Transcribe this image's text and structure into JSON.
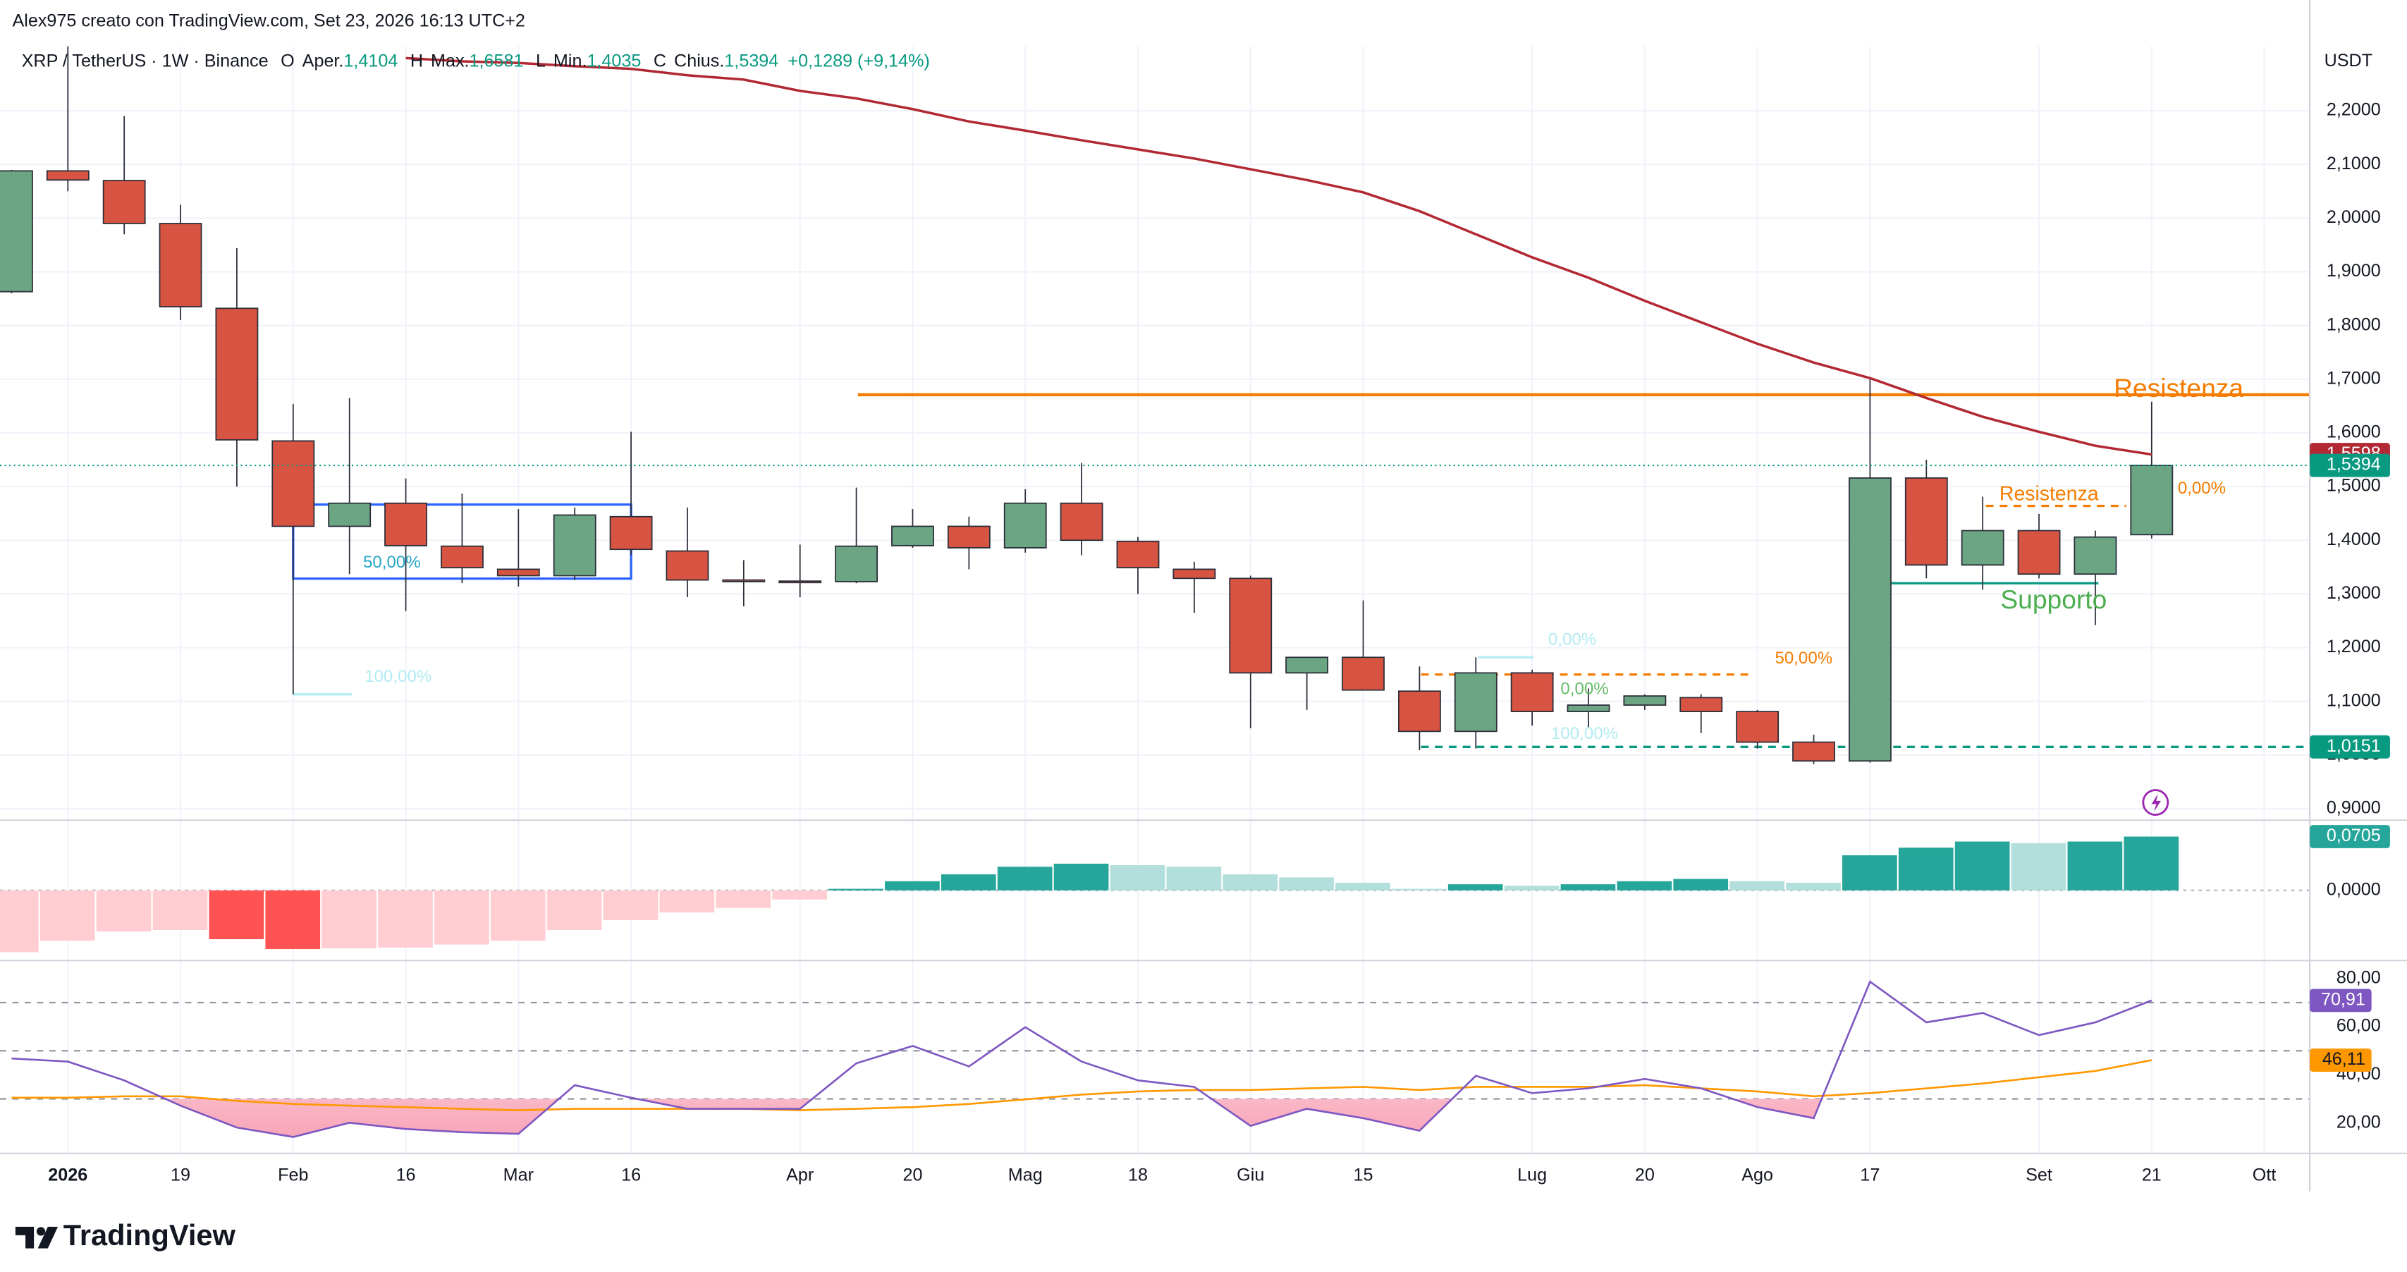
{
  "header": {
    "text": "Alex975 creato con TradingView.com, Set 23, 2026 16:13 UTC+2"
  },
  "footer": {
    "brand": "TradingView"
  },
  "chart_data": [
    {
      "type": "candlestick",
      "legend": {
        "symbol": "XRP / TetherUS · 1W · Binance",
        "fields": [
          {
            "key": "O",
            "name": "Aper.",
            "value": "1,4104"
          },
          {
            "key": "H",
            "name": "Max.",
            "value": "1,6581"
          },
          {
            "key": "L",
            "name": "Min.",
            "value": "1,4035"
          },
          {
            "key": "C",
            "name": "Chius.",
            "value": "1,5394"
          }
        ],
        "change": "+0,1289 (+9,14%)"
      },
      "axis_unit": "USDT",
      "categories": [
        null,
        "2026",
        null,
        "19",
        null,
        "Feb",
        null,
        "16",
        null,
        "Mar",
        null,
        "16",
        null,
        null,
        "Apr",
        null,
        "20",
        null,
        "Mag",
        null,
        "18",
        null,
        "Giu",
        null,
        "15",
        null,
        null,
        "Lug",
        null,
        "20",
        null,
        "Ago",
        null,
        "17",
        null,
        null,
        "Set",
        null,
        "21",
        null,
        "Ott"
      ],
      "open": [
        1.863,
        2.088,
        2.07,
        1.99,
        1.832,
        1.585,
        1.426,
        1.469,
        1.389,
        1.346,
        1.334,
        1.444,
        1.38,
        1.326,
        1.324,
        1.323,
        1.39,
        1.426,
        1.386,
        1.469,
        1.398,
        1.346,
        1.329,
        1.153,
        1.182,
        1.119,
        1.044,
        1.153,
        1.081,
        1.093,
        1.107,
        1.081,
        1.024,
        0.989,
        1.516,
        1.354,
        1.418,
        1.337,
        1.4104,
        null,
        null
      ],
      "high": [
        2.09,
        2.35,
        2.19,
        2.025,
        1.944,
        1.654,
        1.665,
        1.515,
        1.487,
        1.458,
        1.461,
        1.602,
        1.461,
        1.363,
        1.392,
        1.498,
        1.458,
        1.444,
        1.495,
        1.544,
        1.406,
        1.36,
        1.334,
        1.182,
        1.288,
        1.165,
        1.182,
        1.159,
        1.124,
        1.113,
        1.113,
        1.084,
        1.038,
        1.7,
        1.55,
        1.481,
        1.449,
        1.418,
        1.6581,
        null,
        null
      ],
      "low": [
        1.86,
        2.05,
        1.97,
        1.81,
        1.5,
        1.113,
        1.337,
        1.268,
        1.32,
        1.314,
        1.326,
        1.372,
        1.294,
        1.277,
        1.294,
        1.32,
        1.386,
        1.346,
        1.377,
        1.372,
        1.3,
        1.265,
        1.05,
        1.084,
        1.121,
        1.009,
        1.012,
        1.055,
        1.05,
        1.084,
        1.041,
        1.012,
        0.983,
        0.986,
        1.329,
        1.308,
        1.329,
        1.242,
        1.4035,
        null,
        null
      ],
      "close": [
        2.088,
        2.071,
        1.99,
        1.835,
        1.587,
        1.426,
        1.469,
        1.39,
        1.349,
        1.334,
        1.447,
        1.383,
        1.326,
        1.323,
        1.322,
        1.389,
        1.426,
        1.386,
        1.469,
        1.4,
        1.349,
        1.329,
        1.153,
        1.182,
        1.121,
        1.044,
        1.153,
        1.081,
        1.093,
        1.11,
        1.081,
        1.024,
        0.989,
        1.516,
        1.354,
        1.418,
        1.337,
        1.406,
        1.5394,
        null,
        null
      ],
      "close_label": "1,5394",
      "up_color": "#6ba583",
      "down_color": "#d75442",
      "ma": {
        "color": "#b22833",
        "last_label": "1,5598",
        "values": [
          null,
          null,
          null,
          null,
          null,
          null,
          null,
          2.298,
          2.292,
          2.289,
          2.283,
          2.278,
          2.266,
          2.258,
          2.237,
          2.223,
          2.203,
          2.18,
          2.163,
          2.145,
          2.128,
          2.111,
          2.091,
          2.071,
          2.048,
          2.013,
          1.97,
          1.927,
          1.889,
          1.846,
          1.806,
          1.766,
          1.731,
          1.702,
          1.665,
          1.63,
          1.602,
          1.576,
          1.5598,
          null,
          null
        ]
      },
      "ylim": [
        0.883,
        2.32
      ],
      "yticks": [
        {
          "value": 0.9,
          "label": "0,9000"
        },
        {
          "value": 1.0,
          "label": "1,0000"
        },
        {
          "value": 1.1,
          "label": "1,1000"
        },
        {
          "value": 1.2,
          "label": "1,2000"
        },
        {
          "value": 1.3,
          "label": "1,3000"
        },
        {
          "value": 1.4,
          "label": "1,4000"
        },
        {
          "value": 1.5,
          "label": "1,5000"
        },
        {
          "value": 1.6,
          "label": "1,6000"
        },
        {
          "value": 1.7,
          "label": "1,7000"
        },
        {
          "value": 1.8,
          "label": "1,8000"
        },
        {
          "value": 1.9,
          "label": "1,9000"
        },
        {
          "value": 2.0,
          "label": "2,0000"
        },
        {
          "value": 2.1,
          "label": "2,1000"
        },
        {
          "value": 2.2,
          "label": "2,2000"
        }
      ],
      "grid": true,
      "box": {
        "top": 1.4666,
        "bottom": 1.3286,
        "color": "#2962ff"
      },
      "drawings": [
        {
          "value": 1.671,
          "color": "#f57c00",
          "label": "Resistenza"
        },
        {
          "value": 1.464,
          "color": "#f57c00",
          "dash": true,
          "label": "Resistenza"
        },
        {
          "value": 1.32,
          "color": "#4caf50",
          "line_color": "#089981",
          "label": "Supporto"
        },
        {
          "color": "#f57c00",
          "label": "0,00%"
        },
        {
          "value": 1.329,
          "color": "#26a6c4",
          "label": "50,00%"
        },
        {
          "value": 1.113,
          "color": "#b2ebf2",
          "label": "100,00%"
        },
        {
          "value": 1.182,
          "color": "#b2ebf2",
          "label": "0,00%"
        },
        {
          "value": 1.093,
          "color": "#66bb6a",
          "label": "0,00%"
        },
        {
          "value": 1.15,
          "color": "#f57c00",
          "dash": true,
          "label": "50,00%"
        },
        {
          "value": 1.0151,
          "color": "#b2ebf2",
          "line_color": "#089981",
          "dash": true,
          "label": "100,00%",
          "axis_label": "1,0151"
        }
      ]
    },
    {
      "type": "bar",
      "values": [
        -0.081,
        -0.066,
        -0.054,
        -0.052,
        -0.064,
        -0.077,
        -0.076,
        -0.075,
        -0.071,
        -0.066,
        -0.052,
        -0.039,
        -0.029,
        -0.023,
        -0.012,
        0.002,
        0.012,
        0.021,
        0.031,
        0.035,
        0.033,
        0.031,
        0.021,
        0.017,
        0.01,
        0.002,
        0.008,
        0.006,
        0.008,
        0.012,
        0.015,
        0.012,
        0.01,
        0.046,
        0.056,
        0.064,
        0.062,
        0.064,
        0.0705,
        null,
        null
      ],
      "last_label": "0,0705",
      "colors": {
        "up_grow": "#26a69a",
        "up_fall": "#b2dfdb",
        "down_grow": "#ff5252",
        "down_fall": "#ffcdd2"
      },
      "ylim": [
        -0.087,
        0.089
      ],
      "yticks": [
        {
          "value": 0,
          "label": "0,0000"
        }
      ]
    },
    {
      "type": "line",
      "series": [
        {
          "color": "#7e57c2",
          "last_label": "70,91",
          "values": [
            46.8,
            45.5,
            37.7,
            27.2,
            18.1,
            14.2,
            20.1,
            17.5,
            16.2,
            15.5,
            35.7,
            30.5,
            25.9,
            25.9,
            25.9,
            44.8,
            52.0,
            43.5,
            59.8,
            45.5,
            37.7,
            35.0,
            18.8,
            25.9,
            22.0,
            16.8,
            39.6,
            32.4,
            34.4,
            38.3,
            34.4,
            26.6,
            22.0,
            78.7,
            61.8,
            65.7,
            56.5,
            61.8,
            70.91,
            null,
            null
          ]
        },
        {
          "color": "#ff9800",
          "last_label": "46,11",
          "values": [
            30.5,
            30.5,
            31.1,
            31.1,
            29.2,
            27.9,
            27.2,
            26.6,
            25.9,
            25.3,
            25.9,
            25.9,
            25.9,
            25.9,
            25.3,
            25.9,
            26.6,
            27.9,
            29.8,
            31.8,
            33.1,
            33.7,
            33.7,
            34.4,
            35.0,
            33.7,
            35.0,
            35.0,
            35.0,
            35.7,
            34.4,
            33.1,
            31.1,
            32.4,
            34.4,
            36.4,
            39.0,
            41.6,
            46.11,
            null,
            null
          ]
        }
      ],
      "ylim": [
        8.3,
        86.5
      ],
      "yticks": [
        {
          "value": 20,
          "label": "20,00"
        },
        {
          "value": 40,
          "label": "40,00"
        },
        {
          "value": 60,
          "label": "60,00"
        },
        {
          "value": 80,
          "label": "80,00"
        }
      ],
      "bands": [
        70,
        50,
        30
      ]
    }
  ]
}
